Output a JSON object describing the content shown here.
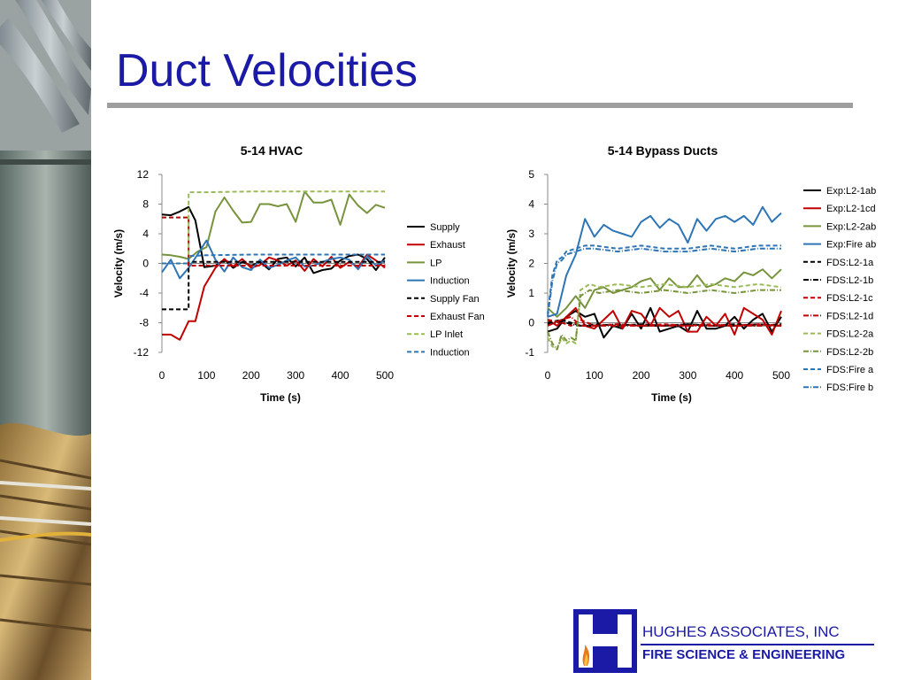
{
  "slide": {
    "title": "Duct Velocities",
    "company_name": "HUGHES ASSOCIATES, INC",
    "company_tagline": "FIRE SCIENCE & ENGINEERING",
    "colors": {
      "title": "#1a1aa6",
      "rule": "#9e9e9e",
      "logo_blue": "#1a1aa6",
      "logo_flame": "#e87a1e"
    },
    "icons": {
      "photo_strip": "duct-photo",
      "logo": "hughes-logo-icon"
    }
  },
  "chart_data": [
    {
      "type": "line",
      "title": "5-14 HVAC",
      "xlabel": "Time (s)",
      "ylabel": "Velocity (m/s)",
      "xlim": [
        0,
        500
      ],
      "ylim": [
        -12,
        12
      ],
      "xticks": [
        "0",
        "100",
        "200",
        "300",
        "400",
        "500"
      ],
      "yticks": [
        "12",
        "8",
        "4",
        "0",
        "-4",
        "-8",
        "-12"
      ],
      "legend_position": "right",
      "grid": false,
      "series": [
        {
          "name": "Supply",
          "color": "#000000",
          "dash": "solid",
          "x": [
            0,
            20,
            40,
            60,
            75,
            95,
            120,
            140,
            160,
            180,
            200,
            220,
            240,
            260,
            280,
            300,
            320,
            340,
            360,
            380,
            400,
            420,
            440,
            460,
            480,
            500
          ],
          "y": [
            6.6,
            6.5,
            7,
            7.6,
            5.8,
            -0.5,
            -0.3,
            0.5,
            -0.6,
            0.2,
            -0.3,
            0.2,
            -0.8,
            0.6,
            0.8,
            -0.4,
            0.8,
            -1.3,
            -0.9,
            -0.7,
            0.4,
            1,
            1.2,
            0.6,
            -0.9,
            0.8
          ]
        },
        {
          "name": "Exhaust",
          "color": "#c00000",
          "dash": "solid",
          "x": [
            0,
            20,
            40,
            60,
            75,
            95,
            120,
            140,
            160,
            180,
            200,
            220,
            240,
            260,
            280,
            300,
            320,
            340,
            360,
            380,
            400,
            420,
            440,
            460,
            480,
            500
          ],
          "y": [
            -9.6,
            -9.6,
            -10.3,
            -7.8,
            -7.8,
            -3.1,
            -0.6,
            0.6,
            -0.4,
            0.6,
            -0.6,
            -0.2,
            0.8,
            0.4,
            -0.3,
            0.4,
            -1,
            0.6,
            -0.4,
            0.9,
            -0.6,
            0.2,
            -0.5,
            1.2,
            0.4,
            -0.6
          ]
        },
        {
          "name": "LP",
          "color": "#77933c",
          "dash": "solid",
          "x": [
            0,
            20,
            40,
            60,
            80,
            100,
            120,
            140,
            160,
            180,
            200,
            220,
            240,
            260,
            280,
            300,
            320,
            340,
            360,
            380,
            400,
            420,
            440,
            460,
            480,
            500
          ],
          "y": [
            1.2,
            1.1,
            0.9,
            0.6,
            1.6,
            2.2,
            7,
            8.9,
            7.1,
            5.5,
            5.6,
            8,
            8,
            7.7,
            8,
            5.6,
            9.7,
            8.2,
            8.2,
            8.6,
            5.2,
            9.3,
            7.8,
            6.8,
            7.9,
            7.5
          ]
        },
        {
          "name": "Induction",
          "color": "#2e75b6",
          "dash": "solid",
          "x": [
            0,
            20,
            40,
            60,
            80,
            100,
            120,
            140,
            160,
            180,
            200,
            220,
            240,
            260,
            280,
            300,
            320,
            340,
            360,
            380,
            400,
            420,
            440,
            460,
            480,
            500
          ],
          "y": [
            -1.2,
            0.5,
            -2,
            -0.6,
            1.2,
            3.1,
            0.5,
            -1.1,
            0.8,
            -0.5,
            -0.9,
            0.5,
            -0.6,
            -0.2,
            0.4,
            0.8,
            -0.4,
            -0.3,
            0.2,
            0.6,
            0.8,
            0.5,
            -0.8,
            1,
            -0.3,
            0.4
          ]
        },
        {
          "name": "Supply Fan",
          "color": "#000000",
          "dash": "dashed",
          "x": [
            0,
            60,
            60,
            500
          ],
          "y": [
            -6.2,
            -6.2,
            0.2,
            0.2
          ]
        },
        {
          "name": "Exhaust Fan",
          "color": "#c00000",
          "dash": "dashed",
          "x": [
            0,
            60,
            60,
            500
          ],
          "y": [
            6.2,
            6.2,
            -0.3,
            -0.3
          ]
        },
        {
          "name": "LP Inlet",
          "color": "#9bbb59",
          "dash": "dashed",
          "x": [
            0,
            60,
            60,
            100,
            200,
            300,
            400,
            500
          ],
          "y": [
            0,
            0,
            9.6,
            9.6,
            9.7,
            9.7,
            9.7,
            9.7
          ]
        },
        {
          "name": "Induction",
          "color": "#2e75b6",
          "dash": "dashed",
          "x": [
            0,
            60,
            60,
            100,
            200,
            300,
            400,
            500
          ],
          "y": [
            0,
            0,
            1,
            1.1,
            1.2,
            1.2,
            1.2,
            1.2
          ]
        }
      ]
    },
    {
      "type": "line",
      "title": "5-14 Bypass Ducts",
      "xlabel": "Time (s)",
      "ylabel": "Velocity (m/s)",
      "xlim": [
        0,
        500
      ],
      "ylim": [
        -1,
        5
      ],
      "xticks": [
        "0",
        "100",
        "200",
        "300",
        "400",
        "500"
      ],
      "yticks": [
        "5",
        "4",
        "3",
        "2",
        "1",
        "0",
        "-1"
      ],
      "legend_position": "right",
      "grid": false,
      "series": [
        {
          "name": "Exp:L2-1ab",
          "color": "#000000",
          "dash": "solid",
          "x": [
            0,
            20,
            40,
            60,
            80,
            100,
            120,
            140,
            160,
            180,
            200,
            220,
            240,
            260,
            280,
            300,
            320,
            340,
            360,
            380,
            400,
            420,
            440,
            460,
            480,
            500
          ],
          "y": [
            -0.3,
            -0.2,
            0.2,
            0.4,
            0.2,
            0.3,
            -0.5,
            -0.1,
            -0.2,
            0.3,
            -0.2,
            0.5,
            -0.3,
            -0.2,
            -0.1,
            -0.3,
            0.4,
            -0.2,
            -0.2,
            -0.1,
            0.2,
            -0.2,
            0.1,
            0.3,
            -0.3,
            0.2
          ]
        },
        {
          "name": "Exp:L2-1cd",
          "color": "#c00000",
          "dash": "solid",
          "x": [
            0,
            20,
            40,
            60,
            80,
            100,
            120,
            140,
            160,
            180,
            200,
            220,
            240,
            260,
            280,
            300,
            320,
            340,
            360,
            380,
            400,
            420,
            440,
            460,
            480,
            500
          ],
          "y": [
            0.1,
            -0.1,
            0.2,
            0.5,
            -0.1,
            -0.2,
            0.1,
            0.4,
            -0.2,
            0.4,
            0.3,
            -0.1,
            0.5,
            0.2,
            0.4,
            -0.3,
            -0.3,
            0.2,
            -0.1,
            0.3,
            -0.4,
            0.5,
            0.3,
            0.1,
            -0.4,
            0.4
          ]
        },
        {
          "name": "Exp:L2-2ab",
          "color": "#77933c",
          "dash": "solid",
          "x": [
            0,
            20,
            40,
            60,
            80,
            100,
            120,
            140,
            160,
            180,
            200,
            220,
            240,
            260,
            280,
            300,
            320,
            340,
            360,
            380,
            400,
            420,
            440,
            460,
            480,
            500
          ],
          "y": [
            0.5,
            0.2,
            0.5,
            0.9,
            0.5,
            1.1,
            1.2,
            1,
            1.1,
            1.2,
            1.4,
            1.5,
            1.1,
            1.5,
            1.2,
            1.2,
            1.6,
            1.2,
            1.3,
            1.5,
            1.4,
            1.7,
            1.6,
            1.8,
            1.5,
            1.8
          ]
        },
        {
          "name": "Exp:Fire ab",
          "color": "#2e75b6",
          "dash": "solid",
          "x": [
            0,
            20,
            40,
            60,
            80,
            100,
            120,
            140,
            160,
            180,
            200,
            220,
            240,
            260,
            280,
            300,
            320,
            340,
            360,
            380,
            400,
            420,
            440,
            460,
            480,
            500
          ],
          "y": [
            0.2,
            0.3,
            1.6,
            2.3,
            3.5,
            2.9,
            3.3,
            3.1,
            3,
            2.9,
            3.4,
            3.6,
            3.2,
            3.5,
            3.3,
            2.7,
            3.5,
            3.1,
            3.5,
            3.6,
            3.4,
            3.6,
            3.3,
            3.9,
            3.4,
            3.7
          ]
        },
        {
          "name": "FDS:L2-1a",
          "color": "#000000",
          "dash": "dashed",
          "x": [
            0,
            30,
            50,
            70,
            100,
            150,
            200,
            250,
            300,
            350,
            400,
            450,
            500
          ],
          "y": [
            0,
            0.1,
            0,
            -0.1,
            -0.05,
            -0.1,
            -0.05,
            -0.1,
            -0.05,
            -0.1,
            -0.05,
            -0.1,
            -0.05
          ]
        },
        {
          "name": "FDS:L2-1b",
          "color": "#000000",
          "dash": "dashdot",
          "x": [
            0,
            30,
            50,
            70,
            100,
            150,
            200,
            250,
            300,
            350,
            400,
            450,
            500
          ],
          "y": [
            -0.05,
            0.05,
            -0.05,
            -0.1,
            -0.1,
            -0.05,
            -0.1,
            -0.1,
            -0.05,
            -0.1,
            -0.1,
            -0.05,
            -0.1
          ]
        },
        {
          "name": "FDS:L2-1c",
          "color": "#c00000",
          "dash": "dashed",
          "x": [
            0,
            30,
            50,
            70,
            100,
            150,
            200,
            250,
            300,
            350,
            400,
            450,
            500
          ],
          "y": [
            0.1,
            0,
            -0.1,
            0.1,
            -0.1,
            -0.05,
            -0.1,
            -0.05,
            -0.1,
            -0.05,
            -0.1,
            -0.05,
            -0.1
          ]
        },
        {
          "name": "FDS:L2-1d",
          "color": "#c00000",
          "dash": "dashdot",
          "x": [
            0,
            30,
            50,
            70,
            100,
            150,
            200,
            250,
            300,
            350,
            400,
            450,
            500
          ],
          "y": [
            -0.1,
            0.1,
            0.2,
            -0.1,
            -0.1,
            -0.1,
            -0.1,
            -0.1,
            -0.1,
            -0.1,
            -0.1,
            -0.1,
            -0.1
          ]
        },
        {
          "name": "FDS:L2-2a",
          "color": "#9bbb59",
          "dash": "dashed",
          "x": [
            0,
            10,
            20,
            30,
            40,
            50,
            60,
            70,
            90,
            110,
            150,
            200,
            250,
            300,
            350,
            400,
            450,
            500
          ],
          "y": [
            -0.5,
            -0.8,
            -0.9,
            -0.5,
            -0.7,
            -0.6,
            -0.7,
            1.1,
            1.3,
            1.2,
            1.3,
            1.2,
            1.3,
            1.2,
            1.3,
            1.2,
            1.3,
            1.2
          ]
        },
        {
          "name": "FDS:L2-2b",
          "color": "#77933c",
          "dash": "dashdot",
          "x": [
            0,
            10,
            20,
            30,
            40,
            50,
            60,
            70,
            90,
            110,
            150,
            200,
            250,
            300,
            350,
            400,
            450,
            500
          ],
          "y": [
            -0.3,
            -0.7,
            -0.9,
            -0.4,
            -0.6,
            -0.5,
            -0.6,
            0.9,
            1.1,
            1,
            1.1,
            1,
            1.1,
            1,
            1.1,
            1,
            1.1,
            1.1
          ]
        },
        {
          "name": "FDS:Fire a",
          "color": "#2e75b6",
          "dash": "dashed",
          "x": [
            0,
            10,
            20,
            30,
            40,
            60,
            80,
            100,
            150,
            200,
            250,
            300,
            350,
            400,
            450,
            500
          ],
          "y": [
            0.3,
            1.6,
            2.1,
            2.2,
            2.4,
            2.5,
            2.6,
            2.6,
            2.5,
            2.6,
            2.5,
            2.5,
            2.6,
            2.5,
            2.6,
            2.6
          ]
        },
        {
          "name": "FDS:Fire b",
          "color": "#2e75b6",
          "dash": "dashdot",
          "x": [
            0,
            10,
            20,
            30,
            40,
            60,
            80,
            100,
            150,
            200,
            250,
            300,
            350,
            400,
            450,
            500
          ],
          "y": [
            0.2,
            1.4,
            2,
            2.1,
            2.3,
            2.4,
            2.5,
            2.5,
            2.4,
            2.5,
            2.4,
            2.4,
            2.5,
            2.4,
            2.5,
            2.5
          ]
        }
      ]
    }
  ]
}
